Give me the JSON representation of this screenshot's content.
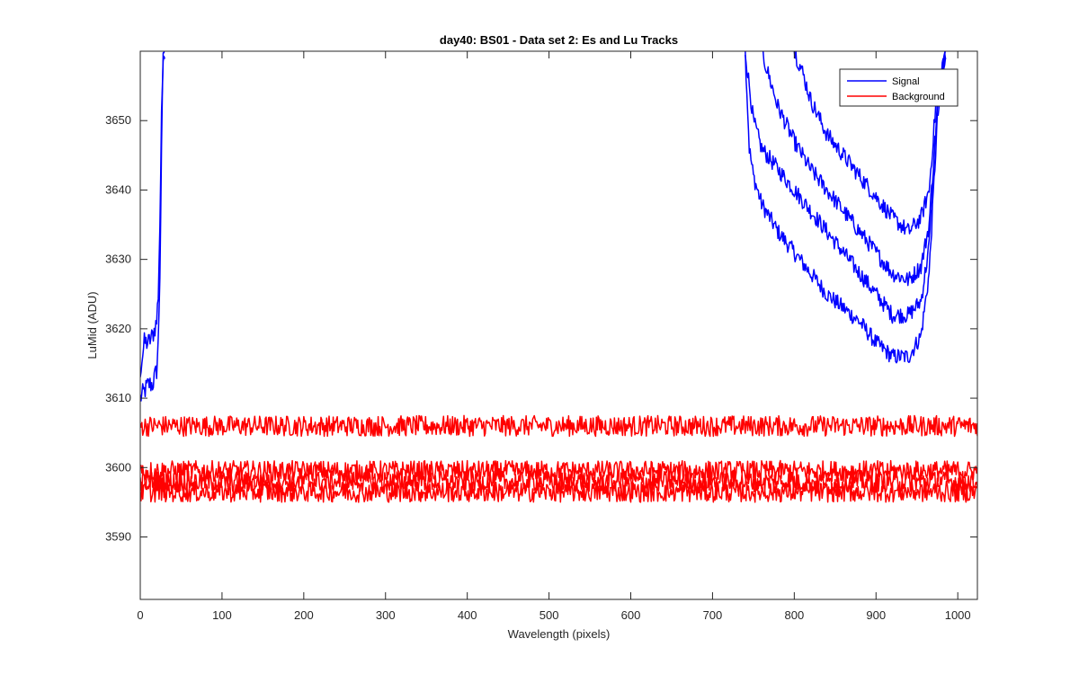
{
  "chart_data": {
    "type": "line",
    "title": "day40: BS01 - Data set 2: Es and Lu Tracks",
    "xlabel": "Wavelength (pixels)",
    "ylabel": "LuMid (ADU)",
    "xlim": [
      0,
      1024
    ],
    "ylim": [
      3581,
      3660
    ],
    "xticks": [
      0,
      100,
      200,
      300,
      400,
      500,
      600,
      700,
      800,
      900,
      1000
    ],
    "yticks": [
      3590,
      3600,
      3610,
      3620,
      3630,
      3640,
      3650
    ],
    "grid": false,
    "legend_position": "top-right",
    "legend": [
      "Signal",
      "Background"
    ],
    "colors": {
      "signal": "#0000ff",
      "background": "#ff0000",
      "axes": "#262626"
    },
    "series": [
      {
        "name": "Signal",
        "color": "#0000ff",
        "curves": [
          {
            "x": [
              0,
              5,
              10,
              15,
              20,
              22,
              24,
              26,
              28,
              30
            ],
            "y": [
              3610,
              3611,
              3612,
              3612,
              3614,
              3618,
              3628,
              3645,
              3660,
              3660
            ],
            "noise": 1.5
          },
          {
            "x": [
              0,
              5,
              10,
              15,
              20,
              22,
              24,
              26,
              28,
              30
            ],
            "y": [
              3614,
              3618,
              3618,
              3619,
              3621,
              3625,
              3635,
              3650,
              3660,
              3660
            ],
            "noise": 1.5
          },
          {
            "x": [
              740,
              745,
              750,
              760,
              780,
              800,
              820,
              840,
              860,
              880,
              900,
              920,
              940,
              955,
              965,
              975,
              985
            ],
            "y": [
              3660,
              3646,
              3642,
              3638,
              3634,
              3631,
              3628,
              3625,
              3623,
              3621,
              3618,
              3616,
              3616,
              3619,
              3628,
              3650,
              3660
            ],
            "noise": 1.2
          },
          {
            "x": [
              740,
              745,
              750,
              760,
              780,
              800,
              820,
              840,
              860,
              880,
              900,
              920,
              940,
              955,
              965,
              975,
              985
            ],
            "y": [
              3660,
              3655,
              3650,
              3646,
              3643,
              3640,
              3637,
              3634,
              3631,
              3628,
              3625,
              3622,
              3622,
              3624,
              3632,
              3652,
              3660
            ],
            "noise": 1.2
          },
          {
            "x": [
              760,
              770,
              780,
              800,
              820,
              840,
              860,
              880,
              900,
              920,
              940,
              955,
              965,
              975,
              985
            ],
            "y": [
              3660,
              3656,
              3652,
              3647,
              3643,
              3640,
              3637,
              3634,
              3631,
              3628,
              3627,
              3629,
              3635,
              3652,
              3660
            ],
            "noise": 1.2
          },
          {
            "x": [
              800,
              810,
              820,
              840,
              860,
              880,
              900,
              920,
              940,
              955,
              965,
              975,
              985
            ],
            "y": [
              3660,
              3657,
              3653,
              3648,
              3645,
              3642,
              3639,
              3636,
              3634,
              3636,
              3640,
              3655,
              3660
            ],
            "noise": 1.2
          }
        ]
      },
      {
        "name": "Background",
        "color": "#ff0000",
        "curves": [
          {
            "x": [
              0,
              1024
            ],
            "y": [
              3606,
              3606
            ],
            "noise": 1.5
          },
          {
            "x": [
              0,
              1024
            ],
            "y": [
              3599.5,
              3599.5
            ],
            "noise": 1.5
          },
          {
            "x": [
              0,
              1024
            ],
            "y": [
              3598,
              3598
            ],
            "noise": 1.5
          },
          {
            "x": [
              0,
              1024
            ],
            "y": [
              3596.5,
              3596.5
            ],
            "noise": 1.5
          }
        ]
      }
    ]
  }
}
